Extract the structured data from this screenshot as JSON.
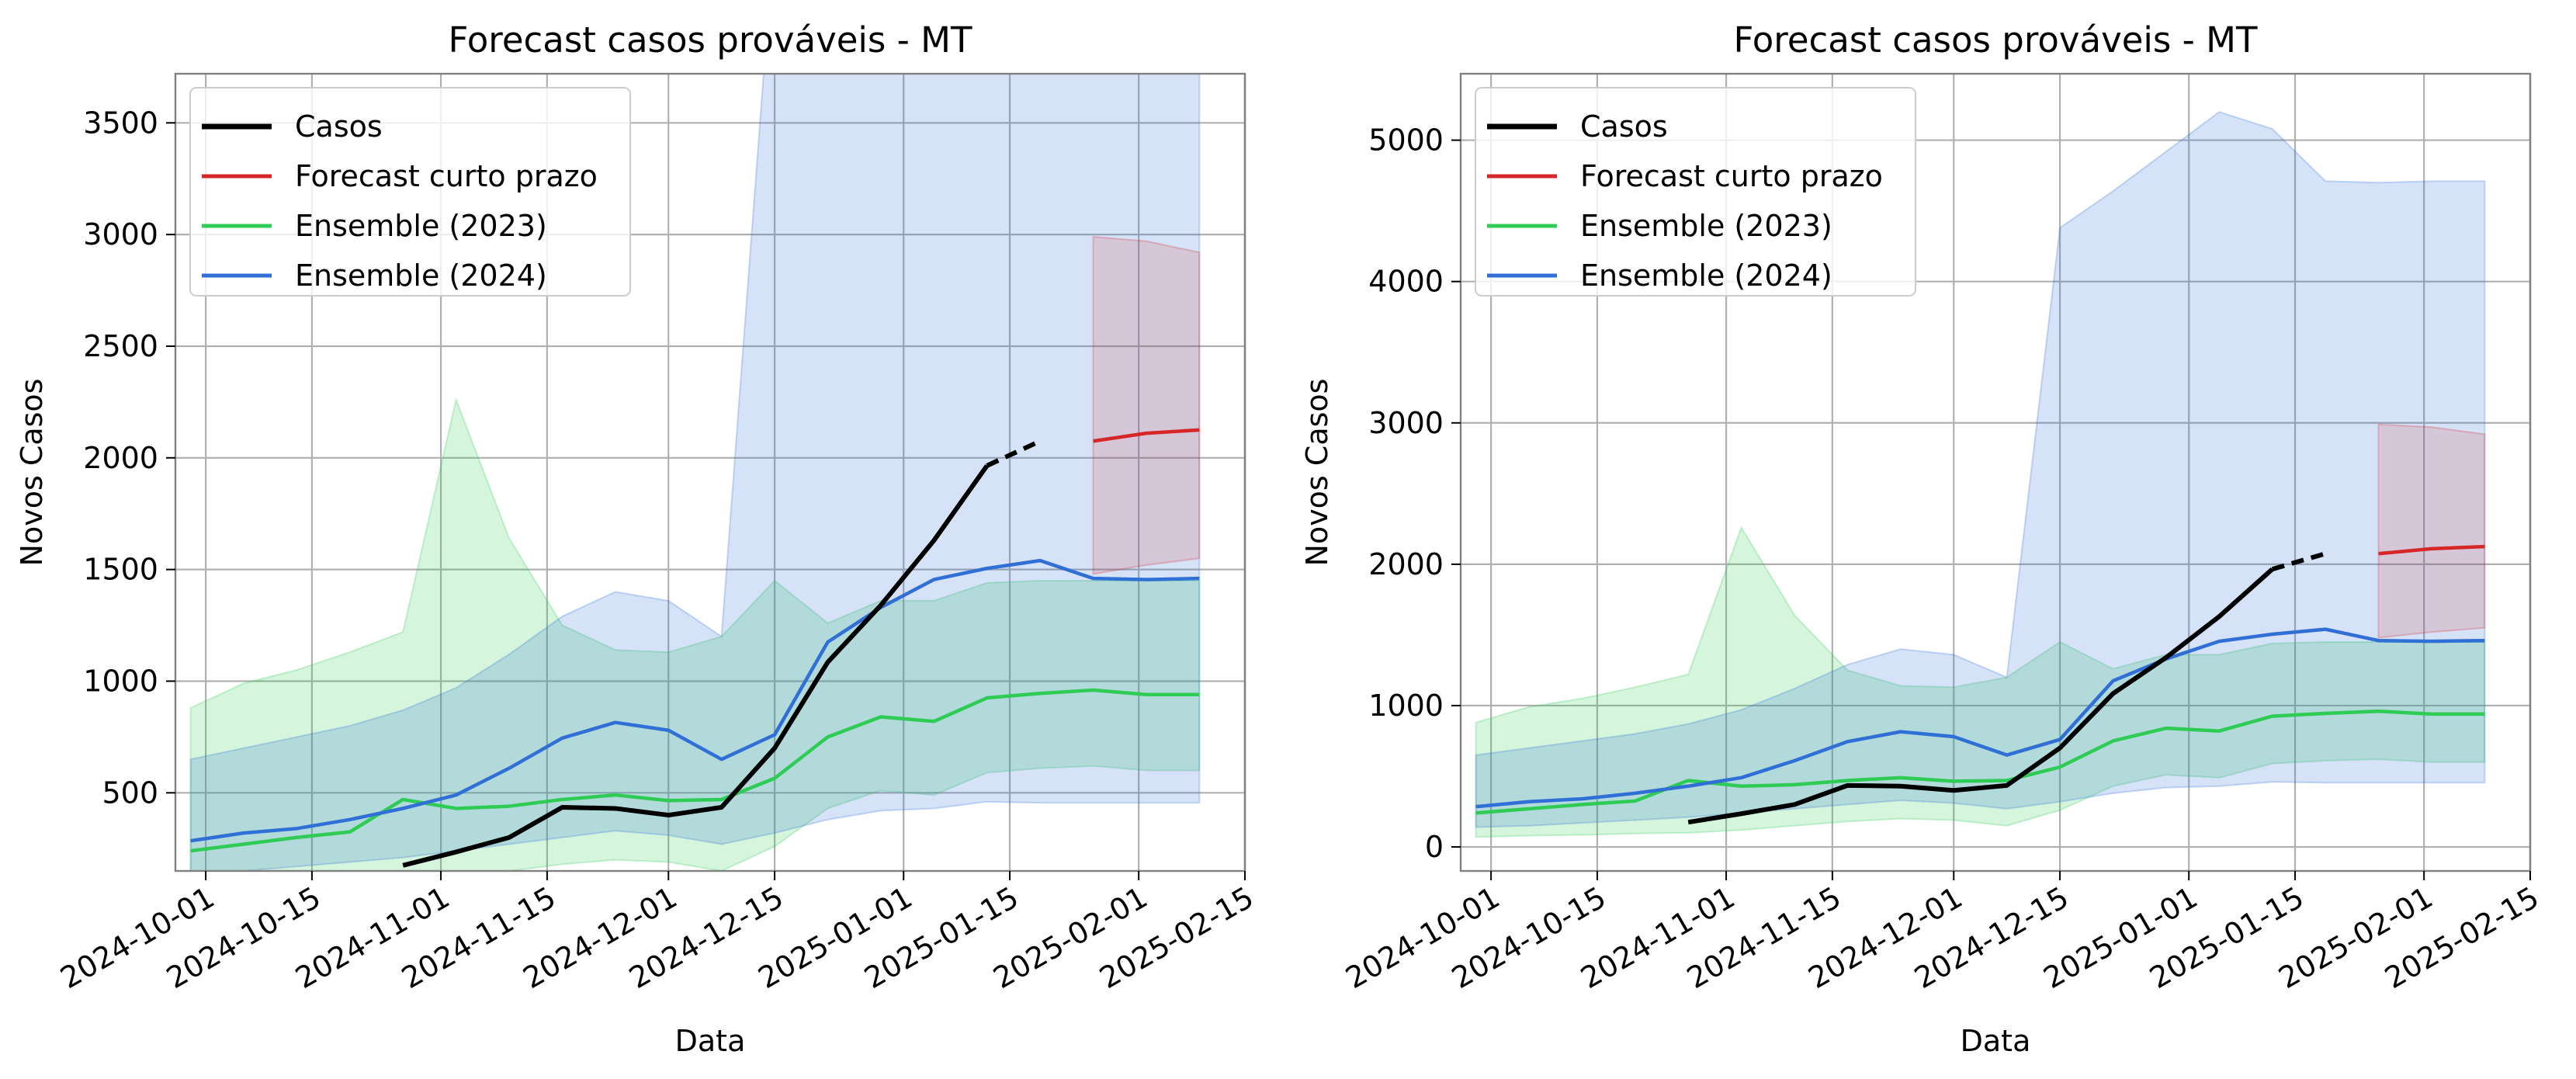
{
  "colors": {
    "casos": "#000000",
    "forecast": "#d62728",
    "ens2023": "#2ecc55",
    "ens2024": "#2f6fd6",
    "band2023": "#2ecc55",
    "band2024": "#2f6fd6",
    "bandForecast": "#d62728",
    "grid": "#b0b0b0"
  },
  "chart_data": [
    {
      "type": "line",
      "title": "Forecast casos prováveis - MT",
      "xlabel": "Data",
      "ylabel": "Novos Casos",
      "xlim": [
        "2024-09-27",
        "2025-02-15"
      ],
      "ylim": [
        150,
        3720
      ],
      "yticks": [
        500,
        1000,
        1500,
        2000,
        2500,
        3000,
        3500
      ],
      "xticks": [
        "2024-10-01",
        "2024-10-15",
        "2024-11-01",
        "2024-11-15",
        "2024-12-01",
        "2024-12-15",
        "2025-01-01",
        "2025-01-15",
        "2025-02-01",
        "2025-02-15"
      ],
      "grid": true,
      "legend": {
        "position": "top-left",
        "entries": [
          {
            "label": "Casos",
            "key": "casos"
          },
          {
            "label": "Forecast curto prazo",
            "key": "forecast"
          },
          {
            "label": "Ensemble (2023)",
            "key": "ens2023"
          },
          {
            "label": "Ensemble (2024)",
            "key": "ens2024"
          }
        ]
      },
      "series": [
        {
          "name": "Casos",
          "key": "casos",
          "x": [
            "2024-10-27",
            "2024-11-03",
            "2024-11-10",
            "2024-11-17",
            "2024-11-24",
            "2024-12-01",
            "2024-12-08",
            "2024-12-15",
            "2024-12-22",
            "2024-12-29",
            "2025-01-05",
            "2025-01-12",
            "2025-01-19"
          ],
          "y": [
            175,
            235,
            300,
            435,
            430,
            400,
            435,
            700,
            1085,
            1340,
            1630,
            1965,
            2075
          ]
        },
        {
          "name": "Forecast curto prazo",
          "key": "forecast",
          "x": [
            "2025-01-26",
            "2025-02-02",
            "2025-02-09"
          ],
          "y": [
            2075,
            2110,
            2125
          ]
        },
        {
          "name": "Ensemble (2023)",
          "key": "ens2023",
          "x": [
            "2024-09-29",
            "2024-10-06",
            "2024-10-13",
            "2024-10-20",
            "2024-10-27",
            "2024-11-03",
            "2024-11-10",
            "2024-11-17",
            "2024-11-24",
            "2024-12-01",
            "2024-12-08",
            "2024-12-15",
            "2024-12-22",
            "2024-12-29",
            "2025-01-05",
            "2025-01-12",
            "2025-01-19",
            "2025-01-26",
            "2025-02-02",
            "2025-02-09"
          ],
          "y": [
            240,
            270,
            300,
            325,
            470,
            430,
            440,
            470,
            490,
            465,
            470,
            565,
            750,
            840,
            820,
            925,
            945,
            960,
            940,
            940
          ]
        },
        {
          "name": "Ensemble (2024)",
          "key": "ens2024",
          "x": [
            "2024-09-29",
            "2024-10-06",
            "2024-10-13",
            "2024-10-20",
            "2024-10-27",
            "2024-11-03",
            "2024-11-10",
            "2024-11-17",
            "2024-11-24",
            "2024-12-01",
            "2024-12-08",
            "2024-12-15",
            "2024-12-22",
            "2024-12-29",
            "2025-01-05",
            "2025-01-12",
            "2025-01-19",
            "2025-01-26",
            "2025-02-02",
            "2025-02-09"
          ],
          "y": [
            285,
            320,
            340,
            380,
            430,
            490,
            610,
            745,
            815,
            780,
            650,
            760,
            1175,
            1330,
            1455,
            1505,
            1540,
            1460,
            1455,
            1460
          ]
        }
      ],
      "bands": [
        {
          "key": "band2023",
          "x": [
            "2024-09-29",
            "2024-10-06",
            "2024-10-13",
            "2024-10-20",
            "2024-10-27",
            "2024-11-03",
            "2024-11-10",
            "2024-11-17",
            "2024-11-24",
            "2024-12-01",
            "2024-12-08",
            "2024-12-15",
            "2024-12-22",
            "2024-12-29",
            "2025-01-05",
            "2025-01-12",
            "2025-01-19",
            "2025-01-26",
            "2025-02-02",
            "2025-02-09"
          ],
          "lower": [
            70,
            80,
            85,
            95,
            100,
            120,
            150,
            180,
            200,
            190,
            150,
            260,
            430,
            510,
            490,
            590,
            610,
            620,
            600,
            600
          ],
          "upper": [
            880,
            990,
            1050,
            1130,
            1220,
            2260,
            1640,
            1250,
            1140,
            1130,
            1200,
            1450,
            1260,
            1360,
            1360,
            1440,
            1450,
            1450,
            1450,
            1450
          ]
        },
        {
          "key": "band2024",
          "x": [
            "2024-09-29",
            "2024-10-06",
            "2024-10-13",
            "2024-10-20",
            "2024-10-27",
            "2024-11-03",
            "2024-11-10",
            "2024-11-17",
            "2024-11-24",
            "2024-12-01",
            "2024-12-08",
            "2024-12-15",
            "2024-12-22",
            "2024-12-29",
            "2025-01-05",
            "2025-01-12",
            "2025-01-19",
            "2025-01-26",
            "2025-02-02",
            "2025-02-09"
          ],
          "lower": [
            140,
            150,
            170,
            190,
            210,
            240,
            270,
            300,
            330,
            310,
            270,
            320,
            380,
            420,
            430,
            460,
            455,
            455,
            455,
            455
          ],
          "upper": [
            650,
            700,
            750,
            800,
            870,
            970,
            1120,
            1290,
            1400,
            1360,
            1200,
            4380,
            4640,
            4920,
            5200,
            5080,
            4710,
            4700,
            4710,
            4710
          ]
        },
        {
          "key": "bandForecast",
          "x": [
            "2025-01-26",
            "2025-02-02",
            "2025-02-09"
          ],
          "lower": [
            1480,
            1520,
            1550
          ],
          "upper": [
            2990,
            2970,
            2920
          ]
        }
      ]
    },
    {
      "type": "line",
      "title": "Forecast casos prováveis - MT",
      "xlabel": "Data",
      "ylabel": "Novos Casos",
      "xlim": [
        "2024-09-27",
        "2025-02-15"
      ],
      "ylim": [
        -170,
        5470
      ],
      "yticks": [
        0,
        1000,
        2000,
        3000,
        4000,
        5000
      ],
      "xticks": [
        "2024-10-01",
        "2024-10-15",
        "2024-11-01",
        "2024-11-15",
        "2024-12-01",
        "2024-12-15",
        "2025-01-01",
        "2025-01-15",
        "2025-02-01",
        "2025-02-15"
      ],
      "grid": true,
      "legend": {
        "position": "top-left",
        "entries": [
          {
            "label": "Casos",
            "key": "casos"
          },
          {
            "label": "Forecast curto prazo",
            "key": "forecast"
          },
          {
            "label": "Ensemble (2023)",
            "key": "ens2023"
          },
          {
            "label": "Ensemble (2024)",
            "key": "ens2024"
          }
        ]
      },
      "series": [
        {
          "name": "Casos",
          "key": "casos",
          "x": [
            "2024-10-27",
            "2024-11-03",
            "2024-11-10",
            "2024-11-17",
            "2024-11-24",
            "2024-12-01",
            "2024-12-08",
            "2024-12-15",
            "2024-12-22",
            "2024-12-29",
            "2025-01-05",
            "2025-01-12",
            "2025-01-19"
          ],
          "y": [
            175,
            235,
            300,
            435,
            430,
            400,
            435,
            700,
            1085,
            1340,
            1630,
            1965,
            2075
          ]
        },
        {
          "name": "Forecast curto prazo",
          "key": "forecast",
          "x": [
            "2025-01-26",
            "2025-02-02",
            "2025-02-09"
          ],
          "y": [
            2075,
            2110,
            2125
          ]
        },
        {
          "name": "Ensemble (2023)",
          "key": "ens2023",
          "x": [
            "2024-09-29",
            "2024-10-06",
            "2024-10-13",
            "2024-10-20",
            "2024-10-27",
            "2024-11-03",
            "2024-11-10",
            "2024-11-17",
            "2024-11-24",
            "2024-12-01",
            "2024-12-08",
            "2024-12-15",
            "2024-12-22",
            "2024-12-29",
            "2025-01-05",
            "2025-01-12",
            "2025-01-19",
            "2025-01-26",
            "2025-02-02",
            "2025-02-09"
          ],
          "y": [
            240,
            270,
            300,
            325,
            470,
            430,
            440,
            470,
            490,
            465,
            470,
            565,
            750,
            840,
            820,
            925,
            945,
            960,
            940,
            940
          ]
        },
        {
          "name": "Ensemble (2024)",
          "key": "ens2024",
          "x": [
            "2024-09-29",
            "2024-10-06",
            "2024-10-13",
            "2024-10-20",
            "2024-10-27",
            "2024-11-03",
            "2024-11-10",
            "2024-11-17",
            "2024-11-24",
            "2024-12-01",
            "2024-12-08",
            "2024-12-15",
            "2024-12-22",
            "2024-12-29",
            "2025-01-05",
            "2025-01-12",
            "2025-01-19",
            "2025-01-26",
            "2025-02-02",
            "2025-02-09"
          ],
          "y": [
            285,
            320,
            340,
            380,
            430,
            490,
            610,
            745,
            815,
            780,
            650,
            760,
            1175,
            1330,
            1455,
            1505,
            1540,
            1460,
            1455,
            1460
          ]
        }
      ],
      "bands": [
        {
          "key": "band2023",
          "x": [
            "2024-09-29",
            "2024-10-06",
            "2024-10-13",
            "2024-10-20",
            "2024-10-27",
            "2024-11-03",
            "2024-11-10",
            "2024-11-17",
            "2024-11-24",
            "2024-12-01",
            "2024-12-08",
            "2024-12-15",
            "2024-12-22",
            "2024-12-29",
            "2025-01-05",
            "2025-01-12",
            "2025-01-19",
            "2025-01-26",
            "2025-02-02",
            "2025-02-09"
          ],
          "lower": [
            70,
            80,
            85,
            95,
            100,
            120,
            150,
            180,
            200,
            190,
            150,
            260,
            430,
            510,
            490,
            590,
            610,
            620,
            600,
            600
          ],
          "upper": [
            880,
            990,
            1050,
            1130,
            1220,
            2260,
            1640,
            1250,
            1140,
            1130,
            1200,
            1450,
            1260,
            1360,
            1360,
            1440,
            1450,
            1450,
            1450,
            1450
          ]
        },
        {
          "key": "band2024",
          "x": [
            "2024-09-29",
            "2024-10-06",
            "2024-10-13",
            "2024-10-20",
            "2024-10-27",
            "2024-11-03",
            "2024-11-10",
            "2024-11-17",
            "2024-11-24",
            "2024-12-01",
            "2024-12-08",
            "2024-12-15",
            "2024-12-22",
            "2024-12-29",
            "2025-01-05",
            "2025-01-12",
            "2025-01-19",
            "2025-01-26",
            "2025-02-02",
            "2025-02-09"
          ],
          "lower": [
            140,
            150,
            170,
            190,
            210,
            240,
            270,
            300,
            330,
            310,
            270,
            320,
            380,
            420,
            430,
            460,
            455,
            455,
            455,
            455
          ],
          "upper": [
            650,
            700,
            750,
            800,
            870,
            970,
            1120,
            1290,
            1400,
            1360,
            1200,
            4380,
            4640,
            4920,
            5200,
            5080,
            4710,
            4700,
            4710,
            4710
          ]
        },
        {
          "key": "bandForecast",
          "x": [
            "2025-01-26",
            "2025-02-02",
            "2025-02-09"
          ],
          "lower": [
            1480,
            1520,
            1550
          ],
          "upper": [
            2990,
            2970,
            2920
          ]
        }
      ]
    }
  ]
}
